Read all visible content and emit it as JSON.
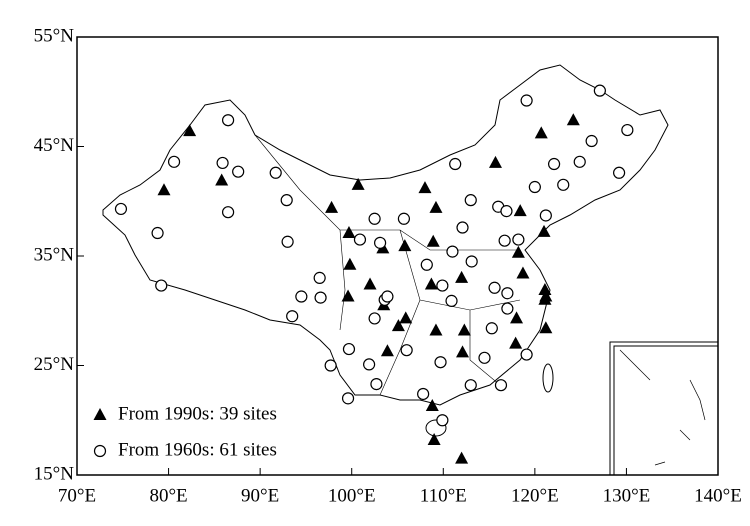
{
  "chart_data": {
    "type": "scatter",
    "xlim": [
      70,
      140
    ],
    "ylim": [
      15,
      55
    ],
    "xticks": [
      {
        "value": 70,
        "label": "70°E"
      },
      {
        "value": 80,
        "label": "80°E"
      },
      {
        "value": 90,
        "label": "90°E"
      },
      {
        "value": 100,
        "label": "100°E"
      },
      {
        "value": 110,
        "label": "110°E"
      },
      {
        "value": 120,
        "label": "120°E"
      },
      {
        "value": 130,
        "label": "130°E"
      },
      {
        "value": 140,
        "label": "140°E"
      }
    ],
    "yticks": [
      {
        "value": 15,
        "label": "15°N"
      },
      {
        "value": 25,
        "label": "25°N"
      },
      {
        "value": 35,
        "label": "35°N"
      },
      {
        "value": 45,
        "label": "45°N"
      },
      {
        "value": 55,
        "label": "55°N"
      }
    ],
    "series": [
      {
        "name": "From 1990s: 39 sites",
        "marker": "triangle",
        "color": "#000000",
        "x": [
          82.3,
          79.5,
          85.8,
          100.7,
          97.8,
          108.0,
          109.2,
          99.7,
          103.4,
          105.8,
          108.9,
          99.8,
          102.0,
          99.6,
          103.5,
          105.1,
          105.9,
          103.9,
          108.7,
          112.0,
          109.2,
          112.3,
          112.1,
          115.7,
          120.7,
          124.2,
          118.4,
          121.0,
          118.2,
          118.7,
          121.1,
          121.1,
          118.0,
          121.2,
          117.9,
          108.8,
          109.0,
          112.0,
          121.2
        ],
        "y": [
          46.4,
          41.0,
          41.9,
          41.5,
          39.4,
          41.2,
          39.4,
          37.1,
          35.7,
          35.9,
          36.3,
          34.2,
          32.4,
          31.3,
          30.5,
          28.6,
          29.3,
          26.3,
          32.4,
          33.0,
          28.2,
          28.2,
          26.2,
          43.5,
          46.2,
          47.4,
          39.1,
          37.2,
          35.3,
          33.4,
          31.9,
          31.0,
          29.3,
          28.4,
          27.0,
          21.3,
          18.2,
          16.5,
          31.3
        ]
      },
      {
        "name": "From 1960s: 61 sites",
        "marker": "circle",
        "color": "#000000",
        "x": [
          74.8,
          78.8,
          79.2,
          80.6,
          86.5,
          85.9,
          87.6,
          86.5,
          91.7,
          92.9,
          93.0,
          94.5,
          93.5,
          96.5,
          96.6,
          97.7,
          99.6,
          99.7,
          100.9,
          102.5,
          103.1,
          105.7,
          103.6,
          103.9,
          102.5,
          101.9,
          102.7,
          106.0,
          108.2,
          111.3,
          113.0,
          112.1,
          111.0,
          113.1,
          109.9,
          110.9,
          109.7,
          107.8,
          109.9,
          113.0,
          114.5,
          115.3,
          115.6,
          117.0,
          117.0,
          119.1,
          116.3,
          116.0,
          116.9,
          120.0,
          121.2,
          116.7,
          118.2,
          119.1,
          122.1,
          124.9,
          123.1,
          126.2,
          127.1,
          130.1,
          129.2
        ],
        "y": [
          39.3,
          37.1,
          32.3,
          43.6,
          47.4,
          43.5,
          42.7,
          39.0,
          42.6,
          40.1,
          36.3,
          31.3,
          29.5,
          33.0,
          31.2,
          25.0,
          22.0,
          26.5,
          36.5,
          38.4,
          36.2,
          38.4,
          31.0,
          31.3,
          29.3,
          25.1,
          23.3,
          26.4,
          34.2,
          43.4,
          40.1,
          37.6,
          35.4,
          34.5,
          32.3,
          30.9,
          25.3,
          22.4,
          20.0,
          23.2,
          25.7,
          28.4,
          32.1,
          31.6,
          30.2,
          26.0,
          23.2,
          39.5,
          39.1,
          41.3,
          38.7,
          36.4,
          36.5,
          49.2,
          43.4,
          43.6,
          41.5,
          45.5,
          50.1,
          46.5,
          42.6
        ]
      }
    ]
  }
}
